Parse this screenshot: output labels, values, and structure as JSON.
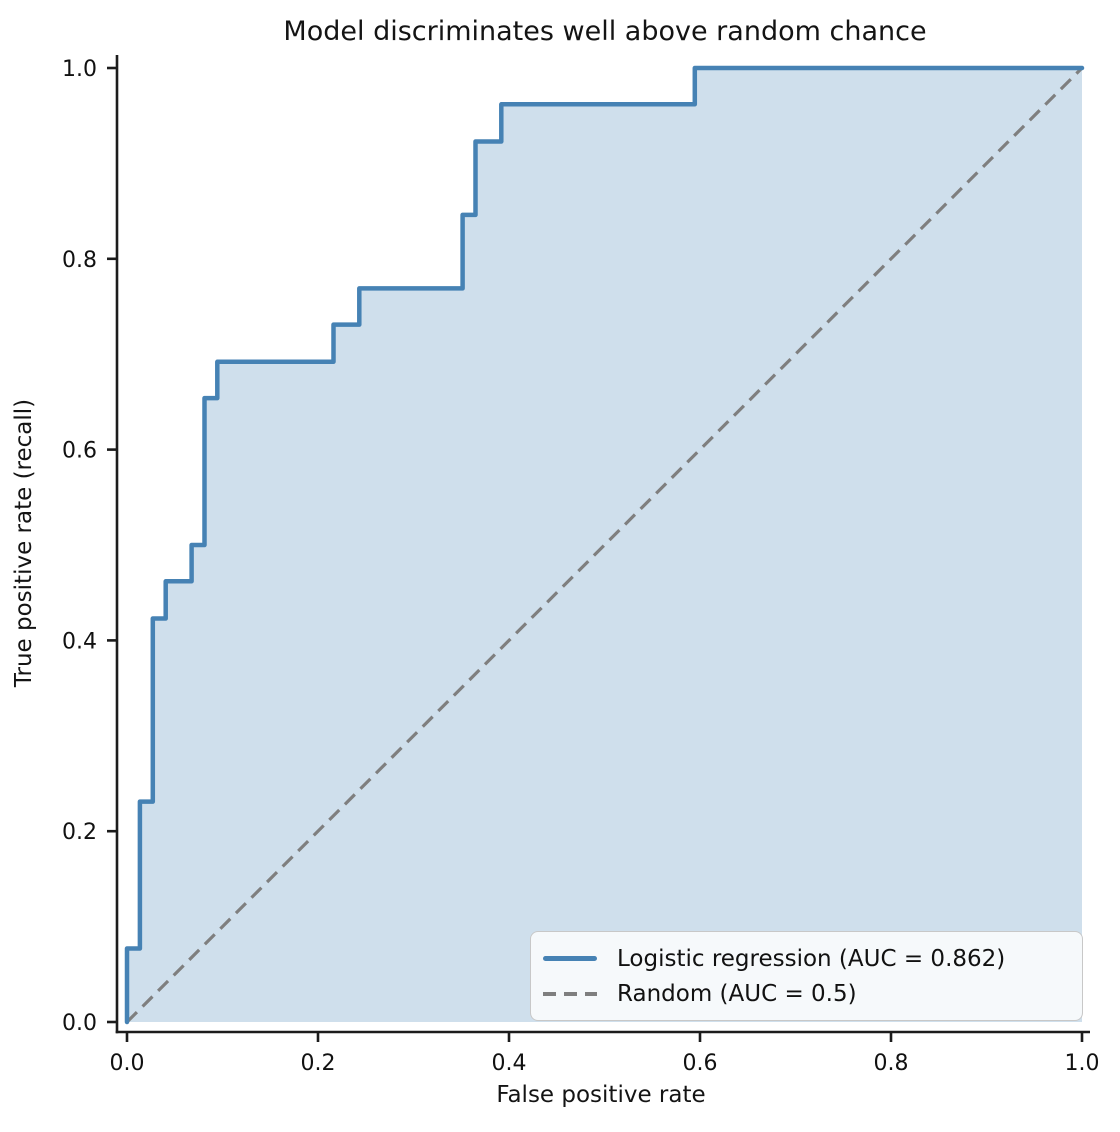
{
  "chart_data": {
    "type": "line",
    "subtype": "roc-curve",
    "title": "Model discriminates well above random chance",
    "xlabel": "False positive rate",
    "ylabel": "True positive rate (recall)",
    "xlim": [
      0,
      1
    ],
    "ylim": [
      0,
      1
    ],
    "x_ticks": [
      0,
      0.2,
      0.4,
      0.6,
      0.8,
      1
    ],
    "x_tick_labels": [
      "0.0",
      "0.2",
      "0.4",
      "0.6",
      "0.8",
      "1.0"
    ],
    "y_ticks": [
      0,
      0.2,
      0.4,
      0.6,
      0.8,
      1
    ],
    "y_tick_labels": [
      "0.0",
      "0.2",
      "0.4",
      "0.6",
      "0.8",
      "1.0"
    ],
    "grid": false,
    "legend_position": "lower right",
    "axis_color": "#1c1c1c",
    "text_color": "#111111",
    "series": [
      {
        "name": "Logistic regression (AUC = 0.862)",
        "style": "step",
        "line": "solid",
        "color": "#4682B4",
        "fill_color": "rgba(70,130,180,0.26)",
        "auc": 0.862,
        "points": [
          [
            0,
            0
          ],
          [
            0,
            0.077
          ],
          [
            0.0135,
            0.077
          ],
          [
            0.0135,
            0.231
          ],
          [
            0.027,
            0.231
          ],
          [
            0.027,
            0.423
          ],
          [
            0.0405,
            0.423
          ],
          [
            0.0405,
            0.462
          ],
          [
            0.0676,
            0.462
          ],
          [
            0.0676,
            0.5
          ],
          [
            0.0811,
            0.5
          ],
          [
            0.0811,
            0.654
          ],
          [
            0.0946,
            0.654
          ],
          [
            0.0946,
            0.692
          ],
          [
            0.2162,
            0.692
          ],
          [
            0.2162,
            0.731
          ],
          [
            0.2432,
            0.731
          ],
          [
            0.2432,
            0.769
          ],
          [
            0.3514,
            0.769
          ],
          [
            0.3514,
            0.846
          ],
          [
            0.3649,
            0.846
          ],
          [
            0.3649,
            0.923
          ],
          [
            0.3919,
            0.923
          ],
          [
            0.3919,
            0.962
          ],
          [
            0.5946,
            0.962
          ],
          [
            0.5946,
            1
          ],
          [
            1,
            1
          ]
        ]
      },
      {
        "name": "Random (AUC = 0.5)",
        "style": "line",
        "line": "dashed",
        "color": "#7f7f7f",
        "auc": 0.5,
        "points": [
          [
            0,
            0
          ],
          [
            1,
            1
          ]
        ]
      }
    ]
  }
}
